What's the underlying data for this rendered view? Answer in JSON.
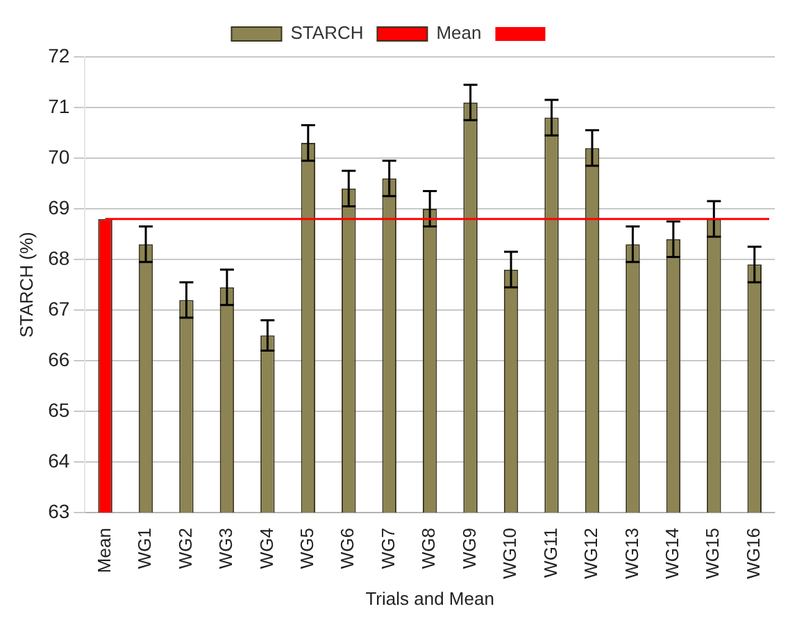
{
  "chart_data": {
    "type": "bar",
    "categories": [
      "Mean",
      "WG1",
      "WG2",
      "WG3",
      "WG4",
      "WG5",
      "WG6",
      "WG7",
      "WG8",
      "WG9",
      "WG10",
      "WG11",
      "WG12",
      "WG13",
      "WG14",
      "WG15",
      "WG16"
    ],
    "series": [
      {
        "name": "STARCH",
        "color": "#8c8452",
        "values": [
          null,
          68.3,
          67.2,
          67.45,
          66.5,
          70.3,
          69.4,
          69.6,
          69.0,
          71.1,
          67.8,
          70.8,
          70.2,
          68.3,
          68.4,
          68.8,
          67.9
        ],
        "errors": [
          null,
          0.35,
          0.35,
          0.35,
          0.3,
          0.35,
          0.35,
          0.35,
          0.35,
          0.35,
          0.35,
          0.35,
          0.35,
          0.35,
          0.35,
          0.35,
          0.35
        ]
      },
      {
        "name": "Mean",
        "color": "#ff0000",
        "values": [
          68.8,
          null,
          null,
          null,
          null,
          null,
          null,
          null,
          null,
          null,
          null,
          null,
          null,
          null,
          null,
          null,
          null
        ]
      }
    ],
    "ref_lines": [
      {
        "axis": "y",
        "value": 68.8,
        "color": "#ff0000",
        "line_style": "solid"
      }
    ],
    "ylim": [
      63,
      72
    ],
    "yticks": [
      63,
      64,
      65,
      66,
      67,
      68,
      69,
      70,
      71,
      72
    ],
    "xlabel": "Trials and Mean",
    "ylabel": "STARCH (%)",
    "grid": "y",
    "legend": "top"
  }
}
